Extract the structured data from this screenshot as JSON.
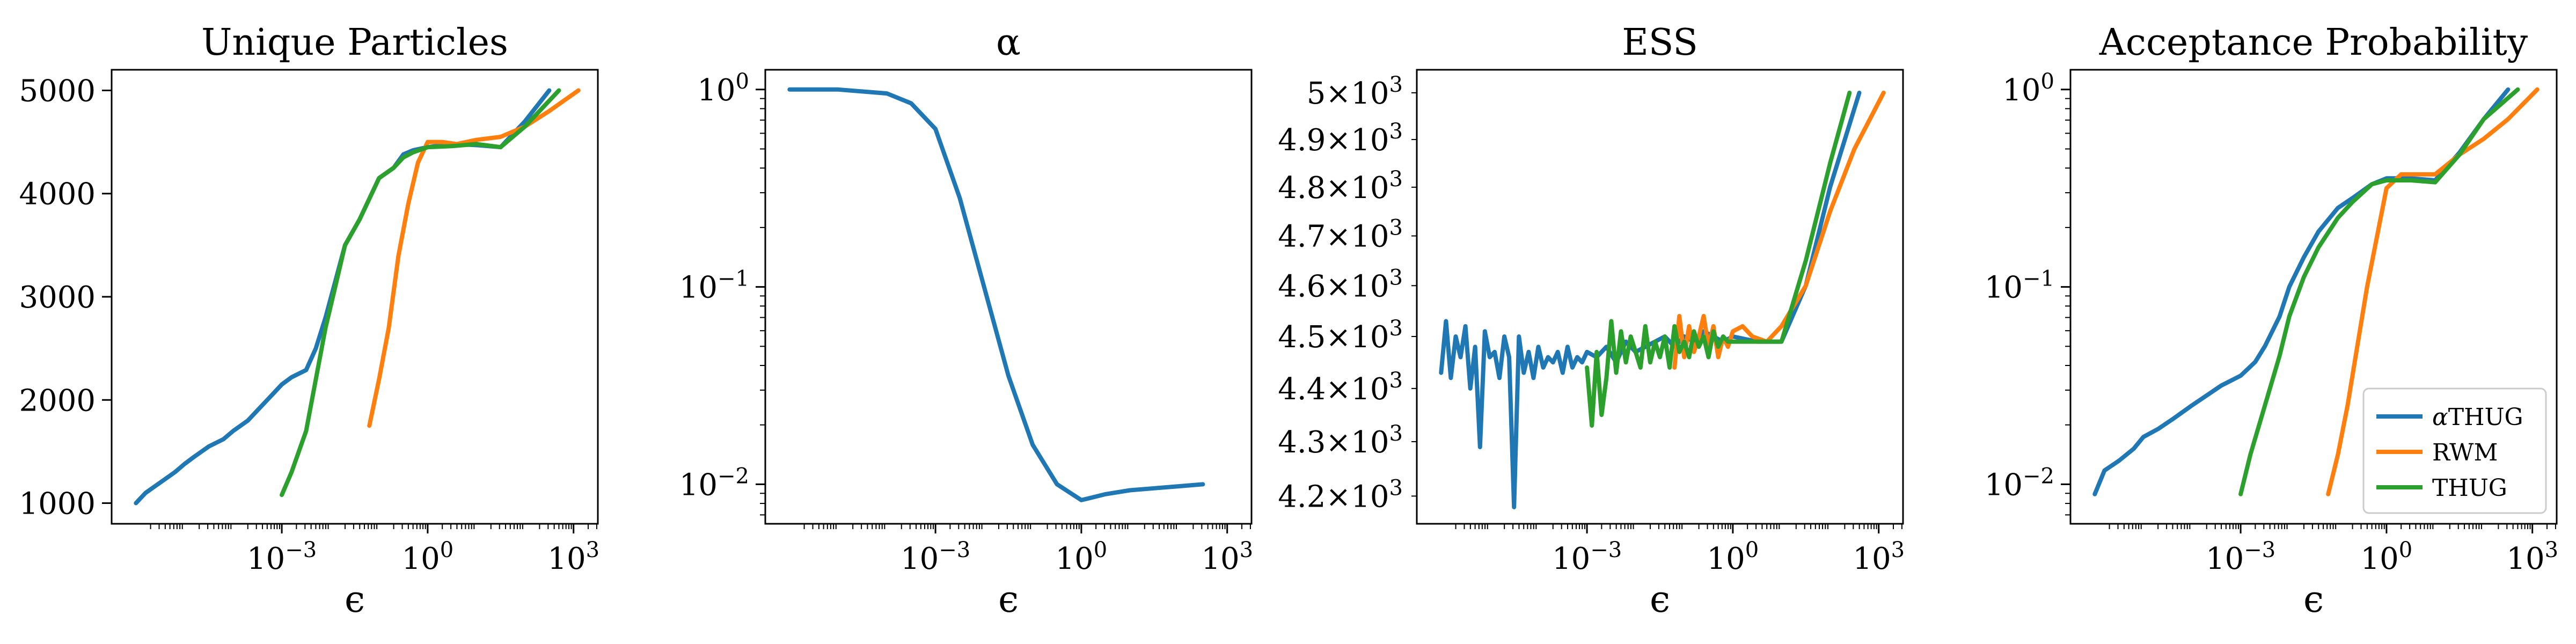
{
  "figure": {
    "legend": [
      {
        "series": "aTHUG",
        "greek": "α",
        "suffix": "THUG"
      },
      {
        "series": "RWM",
        "greek": "",
        "suffix": "RWM"
      },
      {
        "series": "THUG",
        "greek": "",
        "suffix": "THUG"
      }
    ]
  },
  "colors": {
    "aTHUG": "#1f77b4",
    "RWM": "#ff7f0e",
    "THUG": "#2ca02c"
  },
  "chart_data": [
    {
      "type": "line",
      "title": "Unique Particles",
      "xlabel": "ϵ",
      "ylabel": "",
      "xscale": "log",
      "yscale": "linear",
      "xlim": [
        -6.5,
        3.5
      ],
      "ylim": [
        800,
        5200
      ],
      "xticks": [
        {
          "base": "10",
          "exp": "−3"
        },
        {
          "base": "10",
          "exp": "0"
        },
        {
          "base": "10",
          "exp": "3"
        }
      ],
      "xtick_positions": [
        -3,
        0,
        3
      ],
      "yticks": [
        "1000",
        "2000",
        "3000",
        "4000",
        "5000"
      ],
      "ytick_values": [
        1000,
        2000,
        3000,
        4000,
        5000
      ],
      "legend": "none",
      "series": [
        {
          "key": "aTHUG",
          "log10_x": [
            -6.0,
            -5.8,
            -5.5,
            -5.2,
            -5.0,
            -4.8,
            -4.5,
            -4.2,
            -4.0,
            -3.7,
            -3.4,
            -3.2,
            -3.0,
            -2.8,
            -2.5,
            -2.3,
            -2.1,
            -1.9,
            -1.7,
            -1.4,
            -1.2,
            -1.0,
            -0.7,
            -0.5,
            -0.3,
            0.0,
            0.5,
            1.0,
            1.5,
            2.0,
            2.5
          ],
          "y": [
            1000,
            1100,
            1200,
            1300,
            1380,
            1450,
            1550,
            1620,
            1700,
            1800,
            1950,
            2050,
            2150,
            2220,
            2290,
            2500,
            2800,
            3150,
            3500,
            3750,
            3950,
            4150,
            4250,
            4380,
            4420,
            4450,
            4480,
            4470,
            4450,
            4700,
            5000
          ]
        },
        {
          "key": "RWM",
          "log10_x": [
            -1.2,
            -1.0,
            -0.8,
            -0.6,
            -0.4,
            -0.2,
            0.0,
            0.3,
            0.6,
            1.0,
            1.5,
            2.0,
            2.5,
            3.1
          ],
          "y": [
            1750,
            2200,
            2700,
            3400,
            3900,
            4300,
            4500,
            4500,
            4480,
            4520,
            4550,
            4650,
            4800,
            5000
          ]
        },
        {
          "key": "THUG",
          "log10_x": [
            -3.0,
            -2.8,
            -2.5,
            -2.3,
            -2.1,
            -1.9,
            -1.7,
            -1.4,
            -1.2,
            -1.0,
            -0.7,
            -0.5,
            -0.3,
            0.0,
            0.5,
            1.0,
            1.5,
            2.0,
            2.7
          ],
          "y": [
            1080,
            1300,
            1700,
            2200,
            2700,
            3100,
            3500,
            3750,
            3950,
            4150,
            4250,
            4350,
            4400,
            4450,
            4460,
            4480,
            4450,
            4650,
            5000
          ]
        }
      ]
    },
    {
      "type": "line",
      "title": "α",
      "xlabel": "ϵ",
      "ylabel": "",
      "xscale": "log",
      "yscale": "log",
      "xlim": [
        -6.5,
        3.5
      ],
      "ylim": [
        -2.2,
        0.1
      ],
      "xticks": [
        {
          "base": "10",
          "exp": "−3"
        },
        {
          "base": "10",
          "exp": "0"
        },
        {
          "base": "10",
          "exp": "3"
        }
      ],
      "xtick_positions": [
        -3,
        0,
        3
      ],
      "yticks": [
        {
          "base": "10",
          "exp": "0"
        },
        {
          "base": "10",
          "exp": "−1"
        },
        {
          "base": "10",
          "exp": "−2"
        }
      ],
      "ytick_positions": [
        0,
        -1,
        -2
      ],
      "legend": "none",
      "series": [
        {
          "key": "aTHUG",
          "log10_x": [
            -6.0,
            -5.0,
            -4.0,
            -3.5,
            -3.0,
            -2.5,
            -2.0,
            -1.5,
            -1.0,
            -0.5,
            0.0,
            0.5,
            1.0,
            1.5,
            2.0,
            2.5
          ],
          "log10_y": [
            0.0,
            0.0,
            -0.02,
            -0.07,
            -0.2,
            -0.55,
            -1.0,
            -1.45,
            -1.8,
            -2.0,
            -2.08,
            -2.05,
            -2.03,
            -2.02,
            -2.01,
            -2.0
          ]
        }
      ]
    },
    {
      "type": "line",
      "title": "ESS",
      "xlabel": "ϵ",
      "ylabel": "",
      "xscale": "log",
      "yscale": "log",
      "xlim": [
        -6.5,
        3.5
      ],
      "ylim": [
        4150,
        5050
      ],
      "xticks": [
        {
          "base": "10",
          "exp": "−3"
        },
        {
          "base": "10",
          "exp": "0"
        },
        {
          "base": "10",
          "exp": "3"
        }
      ],
      "xtick_positions": [
        -3,
        0,
        3
      ],
      "yticks": [
        {
          "mant": "4.2",
          "base": "10",
          "exp": "3"
        },
        {
          "mant": "4.3",
          "base": "10",
          "exp": "3"
        },
        {
          "mant": "4.4",
          "base": "10",
          "exp": "3"
        },
        {
          "mant": "4.5",
          "base": "10",
          "exp": "3"
        },
        {
          "mant": "4.6",
          "base": "10",
          "exp": "3"
        },
        {
          "mant": "4.7",
          "base": "10",
          "exp": "3"
        },
        {
          "mant": "4.8",
          "base": "10",
          "exp": "3"
        },
        {
          "mant": "4.9",
          "base": "10",
          "exp": "3"
        },
        {
          "mant": "5",
          "base": "10",
          "exp": "3"
        }
      ],
      "ytick_values": [
        4200,
        4300,
        4400,
        4500,
        4600,
        4700,
        4800,
        4900,
        5000
      ],
      "legend": "none",
      "series": [
        {
          "key": "aTHUG",
          "log10_x": [
            -6.0,
            -5.9,
            -5.8,
            -5.7,
            -5.6,
            -5.5,
            -5.4,
            -5.3,
            -5.2,
            -5.1,
            -5.0,
            -4.9,
            -4.8,
            -4.7,
            -4.6,
            -4.5,
            -4.4,
            -4.3,
            -4.2,
            -4.1,
            -4.0,
            -3.9,
            -3.8,
            -3.7,
            -3.6,
            -3.5,
            -3.4,
            -3.3,
            -3.2,
            -3.1,
            -3.0,
            -2.8,
            -2.6,
            -2.4,
            -2.2,
            -2.0,
            -1.8,
            -1.6,
            -1.4,
            -1.2,
            -1.0,
            -0.8,
            -0.6,
            -0.4,
            -0.2,
            0.0,
            0.5,
            1.0,
            1.5,
            2.0,
            2.6
          ],
          "y": [
            4430,
            4530,
            4420,
            4500,
            4460,
            4520,
            4400,
            4480,
            4290,
            4510,
            4460,
            4470,
            4420,
            4500,
            4460,
            4180,
            4500,
            4430,
            4470,
            4420,
            4480,
            4440,
            4460,
            4450,
            4470,
            4430,
            4480,
            4440,
            4460,
            4450,
            4470,
            4460,
            4480,
            4450,
            4490,
            4470,
            4480,
            4490,
            4500,
            4480,
            4500,
            4490,
            4510,
            4500,
            4490,
            4500,
            4490,
            4490,
            4600,
            4800,
            5000
          ]
        },
        {
          "key": "RWM",
          "log10_x": [
            -1.2,
            -1.1,
            -1.0,
            -0.9,
            -0.8,
            -0.7,
            -0.6,
            -0.5,
            -0.4,
            -0.3,
            -0.2,
            -0.1,
            0.0,
            0.2,
            0.4,
            0.7,
            1.0,
            1.5,
            2.0,
            2.5,
            3.1
          ],
          "y": [
            4440,
            4540,
            4460,
            4520,
            4470,
            4500,
            4540,
            4480,
            4520,
            4460,
            4500,
            4480,
            4510,
            4520,
            4500,
            4490,
            4520,
            4600,
            4750,
            4880,
            5000
          ]
        },
        {
          "key": "THUG",
          "log10_x": [
            -3.0,
            -2.9,
            -2.8,
            -2.7,
            -2.6,
            -2.5,
            -2.4,
            -2.3,
            -2.2,
            -2.1,
            -2.0,
            -1.9,
            -1.8,
            -1.7,
            -1.6,
            -1.5,
            -1.4,
            -1.3,
            -1.2,
            -1.1,
            -1.0,
            -0.9,
            -0.8,
            -0.7,
            -0.6,
            -0.5,
            -0.4,
            -0.3,
            -0.2,
            -0.1,
            0.0,
            0.5,
            1.0,
            1.5,
            2.0,
            2.4
          ],
          "y": [
            4440,
            4330,
            4470,
            4350,
            4420,
            4530,
            4430,
            4510,
            4450,
            4500,
            4470,
            4440,
            4520,
            4450,
            4490,
            4460,
            4500,
            4440,
            4520,
            4470,
            4490,
            4460,
            4510,
            4480,
            4500,
            4460,
            4510,
            4480,
            4500,
            4490,
            4490,
            4490,
            4490,
            4650,
            4850,
            5000
          ]
        }
      ]
    },
    {
      "type": "line",
      "title": "Acceptance Probability",
      "xlabel": "ϵ",
      "ylabel": "",
      "xscale": "log",
      "yscale": "log",
      "xlim": [
        -6.5,
        3.5
      ],
      "ylim": [
        -2.2,
        0.1
      ],
      "xticks": [
        {
          "base": "10",
          "exp": "−3"
        },
        {
          "base": "10",
          "exp": "0"
        },
        {
          "base": "10",
          "exp": "3"
        }
      ],
      "xtick_positions": [
        -3,
        0,
        3
      ],
      "yticks": [
        {
          "base": "10",
          "exp": "0"
        },
        {
          "base": "10",
          "exp": "−1"
        },
        {
          "base": "10",
          "exp": "−2"
        }
      ],
      "ytick_positions": [
        0,
        -1,
        -2
      ],
      "legend": "bottom-right",
      "series": [
        {
          "key": "aTHUG",
          "log10_x": [
            -6.0,
            -5.8,
            -5.5,
            -5.2,
            -5.0,
            -4.7,
            -4.4,
            -4.0,
            -3.7,
            -3.4,
            -3.0,
            -2.7,
            -2.5,
            -2.2,
            -2.0,
            -1.7,
            -1.4,
            -1.0,
            -0.7,
            -0.3,
            0.0,
            0.5,
            1.0,
            1.5,
            2.0,
            2.5
          ],
          "log10_y": [
            -2.05,
            -1.93,
            -1.88,
            -1.82,
            -1.76,
            -1.72,
            -1.67,
            -1.6,
            -1.55,
            -1.5,
            -1.45,
            -1.38,
            -1.3,
            -1.15,
            -1.0,
            -0.85,
            -0.72,
            -0.6,
            -0.55,
            -0.48,
            -0.45,
            -0.45,
            -0.46,
            -0.32,
            -0.15,
            0.0
          ]
        },
        {
          "key": "RWM",
          "log10_x": [
            -1.2,
            -1.0,
            -0.8,
            -0.6,
            -0.4,
            -0.2,
            0.0,
            0.3,
            0.6,
            1.0,
            1.5,
            2.0,
            2.5,
            3.1
          ],
          "log10_y": [
            -2.05,
            -1.85,
            -1.6,
            -1.3,
            -1.0,
            -0.75,
            -0.5,
            -0.43,
            -0.43,
            -0.43,
            -0.33,
            -0.25,
            -0.15,
            0.0
          ]
        },
        {
          "key": "THUG",
          "log10_x": [
            -3.0,
            -2.8,
            -2.5,
            -2.2,
            -2.0,
            -1.7,
            -1.4,
            -1.0,
            -0.7,
            -0.3,
            0.0,
            0.5,
            1.0,
            1.5,
            2.0,
            2.7
          ],
          "log10_y": [
            -2.05,
            -1.85,
            -1.6,
            -1.35,
            -1.15,
            -0.95,
            -0.8,
            -0.65,
            -0.57,
            -0.48,
            -0.46,
            -0.46,
            -0.47,
            -0.33,
            -0.15,
            0.0
          ]
        }
      ]
    }
  ]
}
